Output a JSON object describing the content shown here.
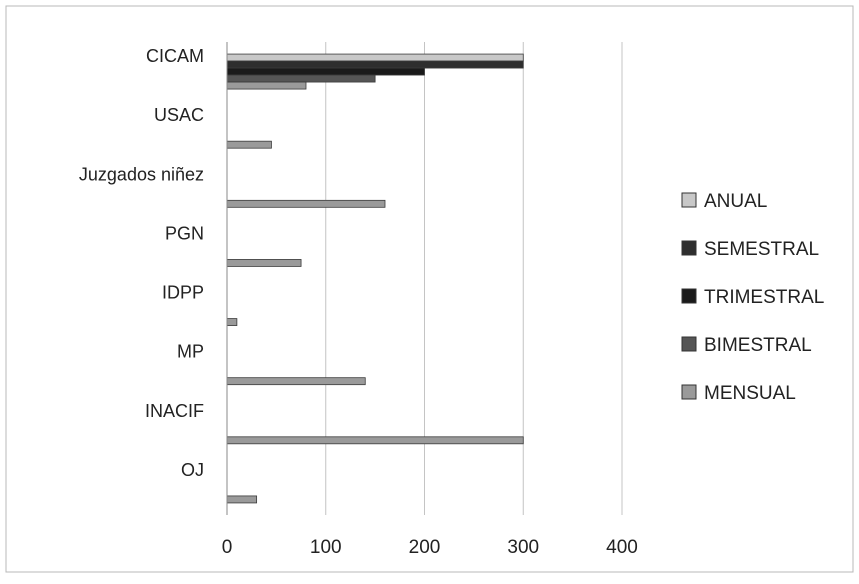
{
  "chart_data": {
    "type": "bar",
    "orientation": "horizontal",
    "categories": [
      "CICAM",
      "USAC",
      "Juzgados niñez",
      "PGN",
      "IDPP",
      "MP",
      "INACIF",
      "OJ"
    ],
    "series": [
      {
        "name": "ANUAL",
        "values": [
          300,
          null,
          null,
          null,
          null,
          null,
          null,
          null
        ],
        "color": "#c8c8c8"
      },
      {
        "name": "SEMESTRAL",
        "values": [
          300,
          null,
          null,
          null,
          null,
          null,
          null,
          null
        ],
        "color": "#2e2e2e"
      },
      {
        "name": "TRIMESTRAL",
        "values": [
          200,
          null,
          null,
          null,
          null,
          null,
          null,
          null
        ],
        "color": "#1a1a1a"
      },
      {
        "name": "BIMESTRAL",
        "values": [
          150,
          null,
          null,
          null,
          null,
          null,
          null,
          null
        ],
        "color": "#555555"
      },
      {
        "name": "MENSUAL",
        "values": [
          80,
          45,
          160,
          75,
          10,
          140,
          300,
          30
        ],
        "color": "#9a9a9a"
      }
    ],
    "xlim": [
      0,
      400
    ],
    "xticks": [
      "0",
      "100",
      "200",
      "300",
      "400"
    ],
    "title": "",
    "xlabel": "",
    "ylabel": "",
    "grid": "vertical",
    "legend_position": "right"
  }
}
